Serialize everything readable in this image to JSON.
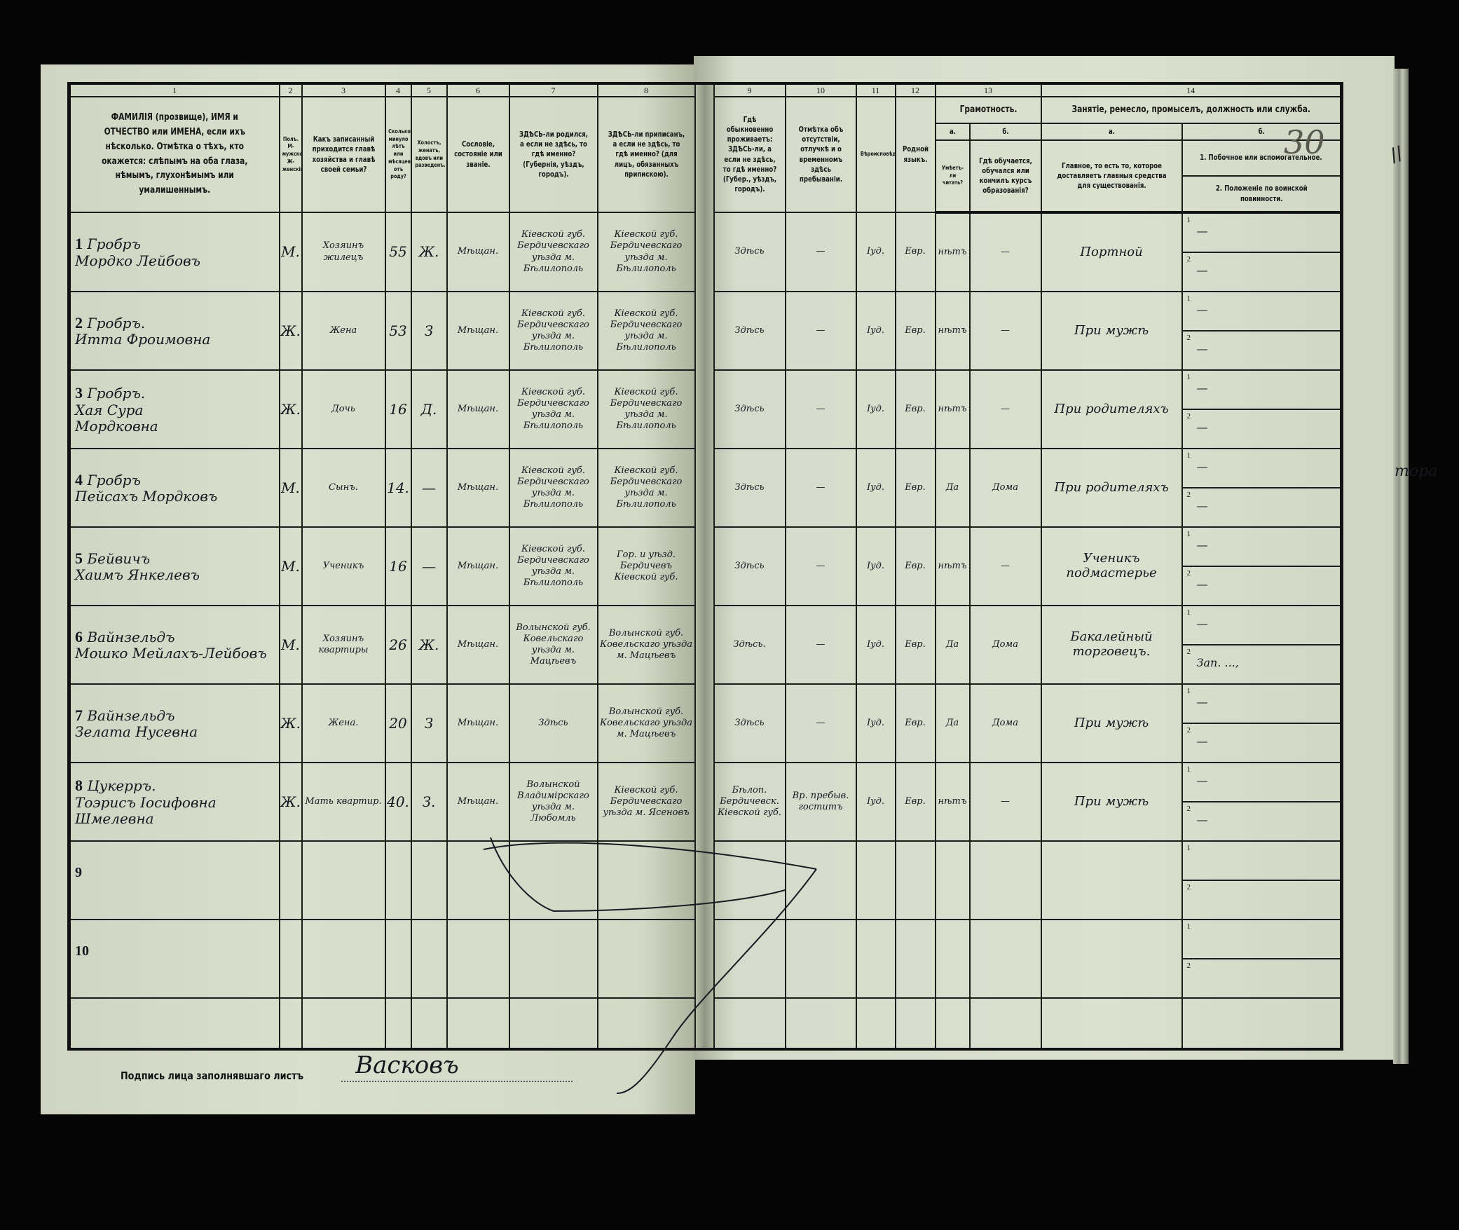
{
  "document": {
    "page_number": "30",
    "margin_note": "тора",
    "margin_marks": "//",
    "signature_label": "Подпись лица заполнявшаго листъ",
    "signature": "Васковъ"
  },
  "columns": {
    "numbers": [
      "1",
      "2",
      "3",
      "4",
      "5",
      "6",
      "7",
      "8",
      "9",
      "10",
      "11",
      "12",
      "13",
      "14"
    ],
    "c1": "ФАМИЛІЯ (прозвище), ИМЯ и ОТЧЕСТВО или ИМЕНА, если ихъ нѣсколько. Отмѣтка о тѣхъ, кто окажется: слѣпымъ на оба глаза, нѣмымъ, глухонѣмымъ или умалишеннымъ.",
    "c2": "Полъ. М-мужской. Ж-женскій.",
    "c3": "Какъ записанный приходится главѣ хозяйства и главѣ своей семьи?",
    "c4": "Сколько минуло лѣтъ или мѣсяцевъ отъ роду?",
    "c5": "Холостъ, женатъ, вдовъ или разведенъ.",
    "c6": "Сословіе, состояніе или званіе.",
    "c7": "ЗДѢСЬ-ли родился, а если не здѣсь, то гдѣ именно? (Губернія, уѣздъ, городъ).",
    "c8": "ЗДѢСЬ-ли приписанъ, а если не здѣсь, то гдѣ именно? (для лицъ, обязанныхъ припискою).",
    "c9": "Гдѣ обыкновенно проживаетъ: ЗДѢСЬ-ли, а если не здѣсь, то гдѣ именно? (Губер., уѣздъ, городъ).",
    "c10": "Отмѣтка объ отсутствіи, отлучкѣ и о временномъ здѣсь пребываніи.",
    "c11": "Вѣроисповѣданіе.",
    "c12": "Родной языкъ.",
    "c13_title": "Грамотность.",
    "c13a_letter": "а.",
    "c13b_letter": "б.",
    "c13a": "Умѣетъ-ли читать?",
    "c13b": "Гдѣ обучается, обучался или кончилъ курсъ образованія?",
    "c14_title": "Занятіе, ремесло, промыселъ, должность или служба.",
    "c14a_letter": "а.",
    "c14b_letter": "б.",
    "c14a": "Главное, то есть то, которое доставляетъ главныя средства для существованія.",
    "c14b_1": "1. Побочное или вспомогательное.",
    "c14b_2": "2. Положеніе по воинской повинности."
  },
  "rows": [
    {
      "n": "1",
      "surname": "Гробръ",
      "given": "Мордко Лейбовъ",
      "given2": "",
      "sex": "М.",
      "relation": "Хозяинъ жилецъ",
      "age": "55",
      "marital": "Ж.",
      "estate": "Мѣщан.",
      "birthplace": "Кіевской губ. Бердичевскаго уѣзда м. Бѣлилополь",
      "registered": "Кіевской губ. Бердичевскаго уѣзда м. Бѣлилополь",
      "residence": "Здѣсь",
      "absence": "—",
      "religion": "Іуд.",
      "language": "Евр.",
      "literate": "нѣтъ",
      "education": "—",
      "occupation": "Портной",
      "k1": "1",
      "side": "—",
      "k2": "2",
      "military": "—"
    },
    {
      "n": "2",
      "surname": "Гробръ.",
      "given": "Итта Фроимовна",
      "given2": "",
      "sex": "Ж.",
      "relation": "Жена",
      "age": "53",
      "marital": "З",
      "estate": "Мѣщан.",
      "birthplace": "Кіевской губ. Бердичевскаго уѣзда м. Бѣлилополь",
      "registered": "Кіевской губ. Бердичевскаго уѣзда м. Бѣлилополь",
      "residence": "Здѣсь",
      "absence": "—",
      "religion": "Іуд.",
      "language": "Евр.",
      "literate": "нѣтъ",
      "education": "—",
      "occupation": "При мужѣ",
      "k1": "1",
      "side": "—",
      "k2": "2",
      "military": "—"
    },
    {
      "n": "3",
      "surname": "Гробръ.",
      "given": "Хая Сура",
      "given2": "Мордковна",
      "sex": "Ж.",
      "relation": "Дочь",
      "age": "16",
      "marital": "Д.",
      "estate": "Мѣщан.",
      "birthplace": "Кіевской губ. Бердичевскаго уѣзда м. Бѣлилополь",
      "registered": "Кіевской губ. Бердичевскаго уѣзда м. Бѣлилополь",
      "residence": "Здѣсь",
      "absence": "—",
      "religion": "Іуд.",
      "language": "Евр.",
      "literate": "нѣтъ",
      "education": "—",
      "occupation": "При родителяхъ",
      "k1": "1",
      "side": "—",
      "k2": "2",
      "military": "—"
    },
    {
      "n": "4",
      "surname": "Гробръ",
      "given": "Пейсахъ Мордковъ",
      "given2": "",
      "sex": "М.",
      "relation": "Сынъ.",
      "age": "14.",
      "marital": "—",
      "estate": "Мѣщан.",
      "birthplace": "Кіевской губ. Бердичевскаго уѣзда м. Бѣлилополь",
      "registered": "Кіевской губ. Бердичевскаго уѣзда м. Бѣлилополь",
      "residence": "Здѣсь",
      "absence": "—",
      "religion": "Іуд.",
      "language": "Евр.",
      "literate": "Да",
      "education": "Дома",
      "occupation": "При родителяхъ",
      "k1": "1",
      "side": "—",
      "k2": "2",
      "military": "—"
    },
    {
      "n": "5",
      "surname": "Бейвичъ",
      "given": "Хаимъ Янкелевъ",
      "given2": "",
      "sex": "М.",
      "relation": "Ученикъ",
      "age": "16",
      "marital": "—",
      "estate": "Мѣщан.",
      "birthplace": "Кіевской губ. Бердичевскаго уѣзда м. Бѣлилополь",
      "registered": "Гор. и уѣзд. Бердичевъ Кіевской губ.",
      "residence": "Здѣсь",
      "absence": "—",
      "religion": "Іуд.",
      "language": "Евр.",
      "literate": "нѣтъ",
      "education": "—",
      "occupation": "Ученикъ подмастерье",
      "k1": "1",
      "side": "—",
      "k2": "2",
      "military": "—"
    },
    {
      "n": "6",
      "surname": "Вайнзельдъ",
      "given": "Мошко Мейлахъ-Лейбовъ",
      "given2": "",
      "sex": "М.",
      "relation": "Хозяинъ квартиры",
      "age": "26",
      "marital": "Ж.",
      "estate": "Мѣщан.",
      "birthplace": "Волынской губ. Ковельскаго уѣзда м. Мацѣевъ",
      "registered": "Волынской губ. Ковельскаго уѣзда м. Мацѣевъ",
      "residence": "Здѣсь.",
      "absence": "—",
      "religion": "Іуд.",
      "language": "Евр.",
      "literate": "Да",
      "education": "Дома",
      "occupation": "Бакалейный торговецъ.",
      "k1": "1",
      "side": "—",
      "k2": "2",
      "military": "Зап. ...,"
    },
    {
      "n": "7",
      "surname": "Вайнзельдъ",
      "given": "Зелата Нусевна",
      "given2": "",
      "sex": "Ж.",
      "relation": "Жена.",
      "age": "20",
      "marital": "З",
      "estate": "Мѣщан.",
      "birthplace": "Здѣсь",
      "registered": "Волынской губ. Ковельскаго уѣзда м. Мацѣевъ",
      "residence": "Здѣсь",
      "absence": "—",
      "religion": "Іуд.",
      "language": "Евр.",
      "literate": "Да",
      "education": "Дома",
      "occupation": "При мужѣ",
      "k1": "1",
      "side": "—",
      "k2": "2",
      "military": "—"
    },
    {
      "n": "8",
      "surname": "Цукерръ.",
      "given": "Тоэрисъ Іосифовна",
      "given2": "Шмелевна",
      "sex": "Ж.",
      "relation": "Мать квартир.",
      "age": "40.",
      "marital": "З.",
      "estate": "Мѣщан.",
      "birthplace": "Волынской Владимірскаго уѣзда м. Любомль",
      "registered": "Кіевской губ. Бердичевскаго уѣзда м. Ясеновъ",
      "residence": "Бѣлоп. Бердичевск. Кіевской губ.",
      "absence": "Вр. пребыв. гоститъ",
      "religion": "Іуд.",
      "language": "Евр.",
      "literate": "нѣтъ",
      "education": "—",
      "occupation": "При мужѣ",
      "k1": "1",
      "side": "—",
      "k2": "2",
      "military": "—"
    },
    {
      "n": "9",
      "surname": "",
      "given": "",
      "given2": "",
      "sex": "",
      "relation": "",
      "age": "",
      "marital": "",
      "estate": "",
      "birthplace": "",
      "registered": "",
      "residence": "",
      "absence": "",
      "religion": "",
      "language": "",
      "literate": "",
      "education": "",
      "occupation": "",
      "k1": "1",
      "side": "",
      "k2": "2",
      "military": ""
    },
    {
      "n": "10",
      "surname": "",
      "given": "",
      "given2": "",
      "sex": "",
      "relation": "",
      "age": "",
      "marital": "",
      "estate": "",
      "birthplace": "",
      "registered": "",
      "residence": "",
      "absence": "",
      "religion": "",
      "language": "",
      "literate": "",
      "education": "",
      "occupation": "",
      "k1": "1",
      "side": "",
      "k2": "2",
      "military": ""
    }
  ]
}
